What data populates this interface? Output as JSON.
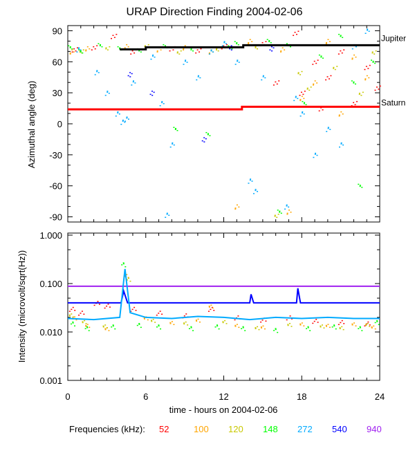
{
  "chart_data": [
    {
      "type": "scatter",
      "title": "URAP Direction Finding  2004-02-06",
      "ylabel": "Azimuthal angle (deg)",
      "xlim": [
        0,
        24
      ],
      "ylim": [
        -95,
        95
      ],
      "yticks": [
        90,
        60,
        30,
        0,
        -30,
        -60,
        -90
      ],
      "annotations": [
        {
          "text": "Jupiter",
          "y": 76
        },
        {
          "text": "Saturn",
          "y": 16.5
        }
      ],
      "lines": [
        {
          "name": "Jupiter",
          "color": "#000000",
          "points": [
            [
              4,
              72
            ],
            [
              6,
              72
            ],
            [
              6,
              74
            ],
            [
              13.5,
              74
            ],
            [
              13.5,
              76
            ],
            [
              24,
              76
            ]
          ]
        },
        {
          "name": "Saturn",
          "color": "#ff0000",
          "points": [
            [
              0,
              14
            ],
            [
              13.4,
              14
            ],
            [
              13.4,
              16.5
            ],
            [
              24,
              16.5
            ]
          ]
        }
      ],
      "series": [
        {
          "name": "52",
          "color": "#ff0000",
          "points": [
            [
              0.5,
              72
            ],
            [
              2,
              74
            ],
            [
              3.5,
              85
            ],
            [
              5,
              70
            ],
            [
              8,
              73
            ],
            [
              10,
              71
            ],
            [
              12,
              75
            ],
            [
              15,
              78
            ],
            [
              16,
              40
            ],
            [
              18,
              30
            ],
            [
              19,
              60
            ],
            [
              20,
              45
            ],
            [
              21,
              70
            ],
            [
              22,
              20
            ],
            [
              23,
              55
            ],
            [
              23.8,
              35
            ],
            [
              17.5,
              88
            ],
            [
              19.5,
              15
            ]
          ]
        },
        {
          "name": "100",
          "color": "#ffa500",
          "points": [
            [
              0.3,
              70
            ],
            [
              1.5,
              73
            ],
            [
              4.5,
              75
            ],
            [
              7,
              72
            ],
            [
              9,
              74
            ],
            [
              11,
              70
            ],
            [
              14,
              80
            ],
            [
              16.5,
              72
            ],
            [
              18,
              25
            ],
            [
              19,
              40
            ],
            [
              20,
              80
            ],
            [
              21,
              10
            ],
            [
              22,
              65
            ],
            [
              23,
              45
            ],
            [
              17,
              -85
            ],
            [
              13,
              -80
            ]
          ]
        },
        {
          "name": "120",
          "color": "#c8c800",
          "points": [
            [
              1,
              71
            ],
            [
              3,
              74
            ],
            [
              6,
              76
            ],
            [
              8.5,
              70
            ],
            [
              11.5,
              73
            ],
            [
              14.5,
              75
            ],
            [
              17.8,
              50
            ],
            [
              18.5,
              35
            ],
            [
              20.5,
              55
            ],
            [
              22.5,
              30
            ],
            [
              23.5,
              70
            ],
            [
              16,
              -88
            ]
          ]
        },
        {
          "name": "148",
          "color": "#00ff00",
          "points": [
            [
              0.2,
              74
            ],
            [
              1,
              70
            ],
            [
              2.5,
              76
            ],
            [
              4,
              73
            ],
            [
              5.5,
              71
            ],
            [
              7.5,
              75
            ],
            [
              9.5,
              72
            ],
            [
              12.5,
              74
            ],
            [
              13,
              78
            ],
            [
              15.5,
              80
            ],
            [
              17,
              76
            ],
            [
              18.2,
              20
            ],
            [
              19.5,
              65
            ],
            [
              21,
              85
            ],
            [
              22,
              40
            ],
            [
              23.5,
              60
            ],
            [
              8.3,
              -5
            ],
            [
              10.8,
              -10
            ],
            [
              22.5,
              -60
            ],
            [
              16.3,
              -85
            ]
          ]
        },
        {
          "name": "272",
          "color": "#00aaff",
          "points": [
            [
              0.8,
              72
            ],
            [
              2.2,
              50
            ],
            [
              3,
              30
            ],
            [
              3.8,
              10
            ],
            [
              4.5,
              5
            ],
            [
              5,
              40
            ],
            [
              6.5,
              65
            ],
            [
              7.2,
              20
            ],
            [
              8,
              -20
            ],
            [
              9,
              60
            ],
            [
              10,
              45
            ],
            [
              11,
              70
            ],
            [
              12,
              78
            ],
            [
              13,
              60
            ],
            [
              14,
              -55
            ],
            [
              14.4,
              -65
            ],
            [
              15,
              45
            ],
            [
              16.8,
              -80
            ],
            [
              17.5,
              25
            ],
            [
              18,
              10
            ],
            [
              19,
              -30
            ],
            [
              20,
              -5
            ],
            [
              21,
              -20
            ],
            [
              22,
              75
            ],
            [
              23,
              90
            ],
            [
              7.6,
              -88
            ],
            [
              4.2,
              2
            ]
          ]
        },
        {
          "name": "540",
          "color": "#0000ff",
          "points": [
            [
              4.7,
              48
            ],
            [
              10.4,
              -15
            ],
            [
              12.5,
              74
            ],
            [
              6.4,
              30
            ],
            [
              15.6,
              73
            ]
          ]
        }
      ]
    },
    {
      "type": "scatter",
      "xlabel": "time - hours on 2004-02-06",
      "ylabel": "Intensity (microvolt/sqrt(Hz))",
      "xlim": [
        0,
        24
      ],
      "ylim": [
        0.001,
        1
      ],
      "yscale": "log",
      "yticks": [
        "1.000",
        "0.100",
        "0.010",
        "0.001"
      ],
      "xticks": [
        "0",
        "6",
        "12",
        "18",
        "24"
      ],
      "lines": [
        {
          "name": "940",
          "color": "#a020f0",
          "points": [
            [
              0,
              0.088
            ],
            [
              24,
              0.088
            ]
          ]
        },
        {
          "name": "540",
          "color": "#0000ff",
          "points": [
            [
              0,
              0.04
            ],
            [
              4.1,
              0.04
            ],
            [
              4.3,
              0.07
            ],
            [
              4.6,
              0.04
            ],
            [
              14,
              0.04
            ],
            [
              14.1,
              0.06
            ],
            [
              14.3,
              0.04
            ],
            [
              17.6,
              0.04
            ],
            [
              17.7,
              0.08
            ],
            [
              17.9,
              0.04
            ],
            [
              24,
              0.04
            ]
          ]
        },
        {
          "name": "272",
          "color": "#00aaff",
          "points": [
            [
              0,
              0.019
            ],
            [
              2,
              0.018
            ],
            [
              4,
              0.02
            ],
            [
              4.4,
              0.2
            ],
            [
              4.8,
              0.025
            ],
            [
              6,
              0.02
            ],
            [
              8,
              0.019
            ],
            [
              10,
              0.021
            ],
            [
              12,
              0.02
            ],
            [
              14,
              0.018
            ],
            [
              16,
              0.02
            ],
            [
              18,
              0.019
            ],
            [
              20,
              0.02
            ],
            [
              22,
              0.019
            ],
            [
              24,
              0.019
            ]
          ]
        }
      ],
      "series": [
        {
          "name": "52",
          "color": "#ff0000",
          "points": [
            [
              0.3,
              0.03
            ],
            [
              1,
              0.025
            ],
            [
              2.2,
              0.04
            ],
            [
              3,
              0.035
            ],
            [
              5,
              0.03
            ],
            [
              7,
              0.025
            ],
            [
              9,
              0.022
            ],
            [
              11,
              0.03
            ],
            [
              13,
              0.02
            ],
            [
              15,
              0.018
            ],
            [
              17,
              0.02
            ],
            [
              19,
              0.017
            ],
            [
              21,
              0.016
            ],
            [
              23,
              0.015
            ]
          ]
        },
        {
          "name": "100",
          "color": "#ffa500",
          "points": [
            [
              0.5,
              0.02
            ],
            [
              1.5,
              0.014
            ],
            [
              3,
              0.012
            ],
            [
              4.5,
              0.15
            ],
            [
              6,
              0.02
            ],
            [
              8,
              0.016
            ],
            [
              10,
              0.018
            ],
            [
              11,
              0.035
            ],
            [
              13,
              0.014
            ],
            [
              15,
              0.013
            ],
            [
              18,
              0.015
            ],
            [
              20,
              0.014
            ],
            [
              22,
              0.015
            ],
            [
              23.5,
              0.013
            ]
          ]
        },
        {
          "name": "120",
          "color": "#c8c800",
          "points": [
            [
              0.2,
              0.022
            ],
            [
              1.2,
              0.016
            ],
            [
              2.8,
              0.013
            ],
            [
              4.6,
              0.12
            ],
            [
              6.5,
              0.017
            ],
            [
              9,
              0.015
            ],
            [
              12,
              0.016
            ],
            [
              14.5,
              0.012
            ],
            [
              17,
              0.014
            ],
            [
              19.5,
              0.013
            ],
            [
              21,
              0.012
            ],
            [
              23,
              0.014
            ]
          ]
        },
        {
          "name": "148",
          "color": "#00ff00",
          "points": [
            [
              0.4,
              0.015
            ],
            [
              1.5,
              0.012
            ],
            [
              3.5,
              0.013
            ],
            [
              4.3,
              0.25
            ],
            [
              5.5,
              0.014
            ],
            [
              7,
              0.013
            ],
            [
              9.5,
              0.012
            ],
            [
              11.5,
              0.013
            ],
            [
              13.5,
              0.012
            ],
            [
              16,
              0.011
            ],
            [
              18.5,
              0.012
            ],
            [
              20.5,
              0.013
            ],
            [
              22.5,
              0.012
            ],
            [
              23.8,
              0.016
            ]
          ]
        }
      ]
    }
  ],
  "legend": {
    "label": "Frequencies (kHz):",
    "items": [
      {
        "text": "52",
        "color": "#ff0000"
      },
      {
        "text": "100",
        "color": "#ffa500"
      },
      {
        "text": "120",
        "color": "#c8c800"
      },
      {
        "text": "148",
        "color": "#00ff00"
      },
      {
        "text": "272",
        "color": "#00aaff"
      },
      {
        "text": "540",
        "color": "#0000ff"
      },
      {
        "text": "940",
        "color": "#a020f0"
      }
    ]
  }
}
